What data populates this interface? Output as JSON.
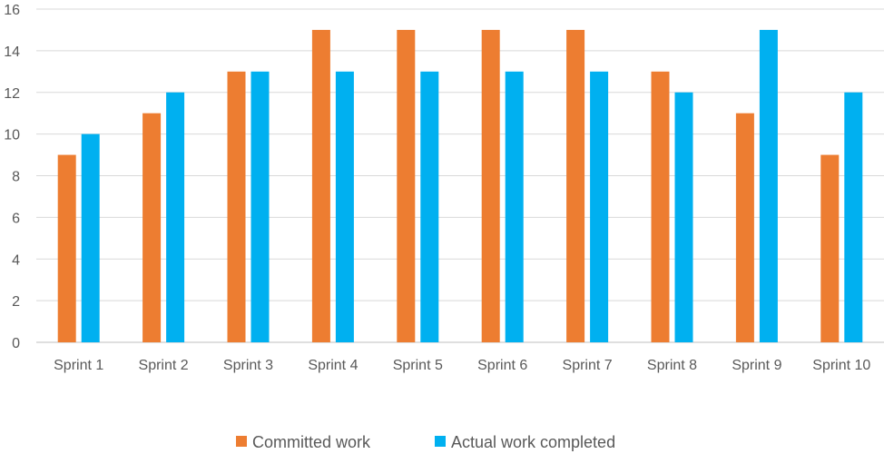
{
  "chart_data": {
    "type": "bar",
    "categories": [
      "Sprint 1",
      "Sprint 2",
      "Sprint 3",
      "Sprint 4",
      "Sprint 5",
      "Sprint 6",
      "Sprint 7",
      "Sprint 8",
      "Sprint 9",
      "Sprint 10"
    ],
    "series": [
      {
        "name": "Committed work",
        "color": "#ed7d31",
        "values": [
          9,
          11,
          13,
          15,
          15,
          15,
          15,
          13,
          11,
          9
        ]
      },
      {
        "name": "Actual work completed",
        "color": "#00b0f0",
        "values": [
          10,
          12,
          13,
          13,
          13,
          13,
          13,
          12,
          15,
          12
        ]
      }
    ],
    "title": "",
    "xlabel": "",
    "ylabel": "",
    "ylim": [
      0,
      16
    ],
    "yticks": [
      0,
      2,
      4,
      6,
      8,
      10,
      12,
      14,
      16
    ],
    "grid": true,
    "legend_position": "bottom"
  }
}
